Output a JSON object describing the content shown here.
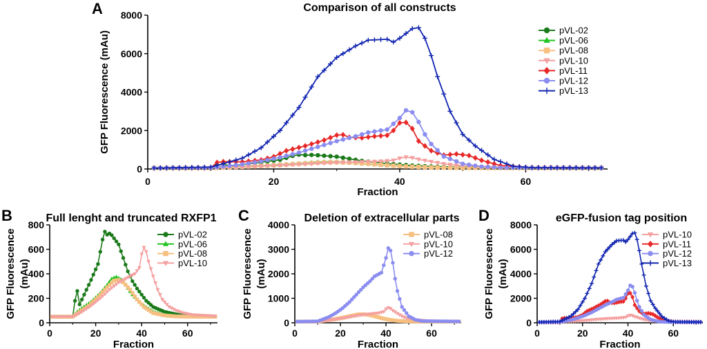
{
  "chart_data": [
    {
      "panel": "A",
      "type": "line",
      "title": "Comparison of all constructs",
      "xlabel": "Fraction",
      "ylabel": "GFP Fluorescence (mAu)",
      "xlim": [
        0,
        73
      ],
      "ylim": [
        0,
        8000
      ],
      "xticks": [
        0,
        20,
        40,
        60
      ],
      "yticks": [
        0,
        2000,
        4000,
        6000,
        8000
      ],
      "series_names": [
        "pVL-02",
        "pVL-06",
        "pVL-08",
        "pVL-10",
        "pVL-11",
        "pVL-12",
        "pVL-13"
      ]
    },
    {
      "panel": "B",
      "type": "line",
      "title": "Full lenght and truncated RXFP1",
      "xlabel": "Fraction",
      "ylabel": "GFP Fluorescence (mAu)",
      "xlim": [
        0,
        73
      ],
      "ylim": [
        0,
        800
      ],
      "xticks": [
        0,
        20,
        40,
        60
      ],
      "yticks": [
        0,
        200,
        400,
        600,
        800
      ],
      "series_names": [
        "pVL-02",
        "pVL-06",
        "pVL-08",
        "pVL-10"
      ]
    },
    {
      "panel": "C",
      "type": "line",
      "title": "Deletion of extracellular parts",
      "xlabel": "Fraction",
      "ylabel": "GFP Fluorescence (mAu)",
      "xlim": [
        0,
        73
      ],
      "ylim": [
        0,
        4000
      ],
      "xticks": [
        0,
        20,
        40,
        60
      ],
      "yticks": [
        0,
        1000,
        2000,
        3000,
        4000
      ],
      "series_names": [
        "pVL-08",
        "pVL-10",
        "pVL-12"
      ]
    },
    {
      "panel": "D",
      "type": "line",
      "title": "eGFP-fusion tag position",
      "xlabel": "Fraction",
      "ylabel": "GFP Fluorescence (mAu)",
      "xlim": [
        0,
        73
      ],
      "ylim": [
        0,
        8000
      ],
      "xticks": [
        0,
        20,
        40,
        60
      ],
      "yticks": [
        0,
        2000,
        4000,
        6000,
        8000
      ],
      "series_names": [
        "pVL-10",
        "pVL-11",
        "pVL-12",
        "pVL-13"
      ]
    }
  ],
  "series_styles": {
    "pVL-02": {
      "color": "#1a7a1a",
      "marker": "circle"
    },
    "pVL-06": {
      "color": "#22c422",
      "marker": "triangle-up"
    },
    "pVL-08": {
      "color": "#f7bf80",
      "marker": "square"
    },
    "pVL-10": {
      "color": "#f4a0a0",
      "marker": "triangle-down"
    },
    "pVL-11": {
      "color": "#e82828",
      "marker": "diamond"
    },
    "pVL-12": {
      "color": "#8a8cf0",
      "marker": "circle"
    },
    "pVL-13": {
      "color": "#1024b0",
      "marker": "star"
    }
  },
  "series_keypoints": {
    "pVL-02": [
      [
        1,
        50
      ],
      [
        10,
        50
      ],
      [
        11,
        180
      ],
      [
        12,
        260
      ],
      [
        13,
        150
      ],
      [
        15,
        230
      ],
      [
        18,
        350
      ],
      [
        21,
        480
      ],
      [
        23,
        680
      ],
      [
        24,
        745
      ],
      [
        25,
        720
      ],
      [
        26,
        730
      ],
      [
        27,
        715
      ],
      [
        28,
        690
      ],
      [
        30,
        640
      ],
      [
        32,
        530
      ],
      [
        34,
        420
      ],
      [
        36,
        340
      ],
      [
        38,
        280
      ],
      [
        40,
        230
      ],
      [
        42,
        180
      ],
      [
        45,
        130
      ],
      [
        50,
        90
      ],
      [
        55,
        70
      ],
      [
        60,
        60
      ],
      [
        65,
        55
      ],
      [
        72,
        50
      ]
    ],
    "pVL-06": [
      [
        1,
        50
      ],
      [
        10,
        50
      ],
      [
        12,
        90
      ],
      [
        14,
        120
      ],
      [
        18,
        170
      ],
      [
        22,
        240
      ],
      [
        25,
        310
      ],
      [
        27,
        360
      ],
      [
        29,
        375
      ],
      [
        31,
        355
      ],
      [
        33,
        310
      ],
      [
        36,
        230
      ],
      [
        40,
        150
      ],
      [
        45,
        90
      ],
      [
        50,
        65
      ],
      [
        55,
        55
      ],
      [
        60,
        50
      ],
      [
        72,
        50
      ]
    ],
    "pVL-08": [
      [
        1,
        50
      ],
      [
        10,
        50
      ],
      [
        13,
        90
      ],
      [
        17,
        140
      ],
      [
        21,
        210
      ],
      [
        25,
        290
      ],
      [
        28,
        345
      ],
      [
        30,
        350
      ],
      [
        32,
        330
      ],
      [
        35,
        270
      ],
      [
        38,
        190
      ],
      [
        41,
        130
      ],
      [
        45,
        80
      ],
      [
        50,
        60
      ],
      [
        55,
        52
      ],
      [
        60,
        50
      ],
      [
        72,
        50
      ]
    ],
    "pVL-10": [
      [
        1,
        50
      ],
      [
        10,
        50
      ],
      [
        14,
        90
      ],
      [
        18,
        140
      ],
      [
        22,
        200
      ],
      [
        26,
        270
      ],
      [
        30,
        330
      ],
      [
        34,
        370
      ],
      [
        37,
        400
      ],
      [
        39,
        450
      ],
      [
        40,
        560
      ],
      [
        41,
        615
      ],
      [
        42,
        580
      ],
      [
        43,
        500
      ],
      [
        45,
        380
      ],
      [
        47,
        270
      ],
      [
        49,
        190
      ],
      [
        52,
        130
      ],
      [
        55,
        100
      ],
      [
        58,
        80
      ],
      [
        62,
        65
      ],
      [
        72,
        55
      ]
    ],
    "pVL-11": [
      [
        1,
        50
      ],
      [
        10,
        60
      ],
      [
        11,
        340
      ],
      [
        12,
        380
      ],
      [
        15,
        370
      ],
      [
        18,
        470
      ],
      [
        20,
        640
      ],
      [
        22,
        950
      ],
      [
        25,
        1200
      ],
      [
        28,
        1500
      ],
      [
        30,
        1760
      ],
      [
        31,
        1780
      ],
      [
        32,
        1650
      ],
      [
        34,
        1620
      ],
      [
        36,
        1700
      ],
      [
        38,
        1750
      ],
      [
        39,
        2000
      ],
      [
        40,
        2400
      ],
      [
        41,
        2420
      ],
      [
        42,
        2100
      ],
      [
        43,
        1450
      ],
      [
        45,
        950
      ],
      [
        47,
        720
      ],
      [
        49,
        780
      ],
      [
        51,
        700
      ],
      [
        53,
        450
      ],
      [
        56,
        180
      ],
      [
        60,
        80
      ],
      [
        72,
        60
      ]
    ],
    "pVL-12": [
      [
        1,
        50
      ],
      [
        10,
        60
      ],
      [
        12,
        130
      ],
      [
        15,
        240
      ],
      [
        18,
        400
      ],
      [
        21,
        600
      ],
      [
        24,
        850
      ],
      [
        27,
        1150
      ],
      [
        30,
        1450
      ],
      [
        33,
        1700
      ],
      [
        35,
        1900
      ],
      [
        38,
        2050
      ],
      [
        40,
        2650
      ],
      [
        41,
        3050
      ],
      [
        42,
        2950
      ],
      [
        43,
        2450
      ],
      [
        44,
        1800
      ],
      [
        45,
        1300
      ],
      [
        47,
        650
      ],
      [
        50,
        270
      ],
      [
        53,
        120
      ],
      [
        56,
        70
      ],
      [
        72,
        55
      ]
    ],
    "pVL-13": [
      [
        1,
        50
      ],
      [
        10,
        100
      ],
      [
        12,
        280
      ],
      [
        15,
        560
      ],
      [
        18,
        1100
      ],
      [
        21,
        2000
      ],
      [
        24,
        3200
      ],
      [
        27,
        4800
      ],
      [
        30,
        5800
      ],
      [
        33,
        6400
      ],
      [
        35,
        6700
      ],
      [
        38,
        6750
      ],
      [
        39,
        6600
      ],
      [
        40,
        6800
      ],
      [
        42,
        7300
      ],
      [
        43,
        7350
      ],
      [
        44,
        6800
      ],
      [
        45,
        5900
      ],
      [
        46,
        4800
      ],
      [
        48,
        3000
      ],
      [
        50,
        1800
      ],
      [
        52,
        1200
      ],
      [
        55,
        500
      ],
      [
        58,
        150
      ],
      [
        61,
        70
      ],
      [
        72,
        60
      ]
    ]
  },
  "sampling": {
    "x_start": 1,
    "x_end": 72,
    "step": 1
  }
}
